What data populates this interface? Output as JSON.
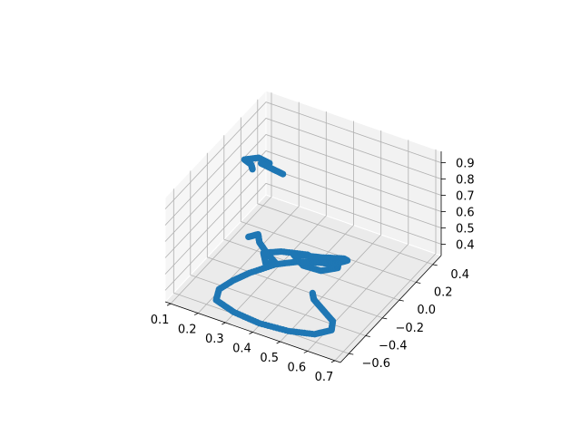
{
  "chart_data": {
    "type": "scatter",
    "projection": "3d",
    "grid": true,
    "marker_color": "#1f77b4",
    "x_ticks": [
      "0.1",
      "0.2",
      "0.3",
      "0.4",
      "0.5",
      "0.6",
      "0.7"
    ],
    "y_ticks": [
      "−0.6",
      "−0.4",
      "−0.2",
      "0.0",
      "0.2",
      "0.4"
    ],
    "z_ticks": [
      "0.4",
      "0.5",
      "0.6",
      "0.7",
      "0.8",
      "0.9"
    ],
    "xlim": [
      0.08,
      0.72
    ],
    "ylim": [
      -0.7,
      0.5
    ],
    "zlim": [
      0.33,
      0.97
    ],
    "segments": [
      {
        "points": [
          [
            0.23,
            -0.15,
            0.93
          ],
          [
            0.21,
            -0.1,
            0.92
          ],
          [
            0.17,
            -0.05,
            0.9
          ],
          [
            0.2,
            0.02,
            0.89
          ],
          [
            0.24,
            0.02,
            0.88
          ],
          [
            0.22,
            0.02,
            0.86
          ],
          [
            0.2,
            0.05,
            0.84
          ],
          [
            0.24,
            0.05,
            0.83
          ],
          [
            0.28,
            0.05,
            0.82
          ]
        ]
      },
      {
        "points": [
          [
            0.2,
            -0.1,
            0.47
          ],
          [
            0.22,
            -0.05,
            0.47
          ],
          [
            0.24,
            -0.1,
            0.46
          ],
          [
            0.28,
            -0.15,
            0.45
          ],
          [
            0.33,
            -0.2,
            0.44
          ],
          [
            0.3,
            -0.22,
            0.43
          ],
          [
            0.27,
            -0.15,
            0.44
          ],
          [
            0.32,
            -0.1,
            0.45
          ],
          [
            0.4,
            -0.05,
            0.45
          ],
          [
            0.45,
            -0.05,
            0.43
          ],
          [
            0.48,
            0.0,
            0.41
          ],
          [
            0.5,
            0.1,
            0.39
          ],
          [
            0.48,
            0.12,
            0.38
          ],
          [
            0.42,
            0.05,
            0.39
          ],
          [
            0.37,
            0.0,
            0.4
          ],
          [
            0.35,
            -0.05,
            0.42
          ],
          [
            0.4,
            -0.1,
            0.41
          ],
          [
            0.45,
            -0.05,
            0.38
          ],
          [
            0.48,
            0.05,
            0.36
          ],
          [
            0.46,
            0.12,
            0.34
          ],
          [
            0.42,
            0.08,
            0.34
          ],
          [
            0.35,
            0.0,
            0.35
          ],
          [
            0.3,
            -0.1,
            0.36
          ],
          [
            0.25,
            -0.25,
            0.36
          ],
          [
            0.22,
            -0.35,
            0.35
          ],
          [
            0.2,
            -0.45,
            0.34
          ],
          [
            0.22,
            -0.55,
            0.34
          ],
          [
            0.3,
            -0.6,
            0.34
          ],
          [
            0.4,
            -0.62,
            0.34
          ],
          [
            0.5,
            -0.6,
            0.34
          ],
          [
            0.58,
            -0.55,
            0.34
          ],
          [
            0.62,
            -0.48,
            0.35
          ],
          [
            0.6,
            -0.4,
            0.35
          ],
          [
            0.55,
            -0.35,
            0.36
          ],
          [
            0.5,
            -0.3,
            0.37
          ],
          [
            0.48,
            -0.25,
            0.37
          ]
        ]
      }
    ]
  }
}
